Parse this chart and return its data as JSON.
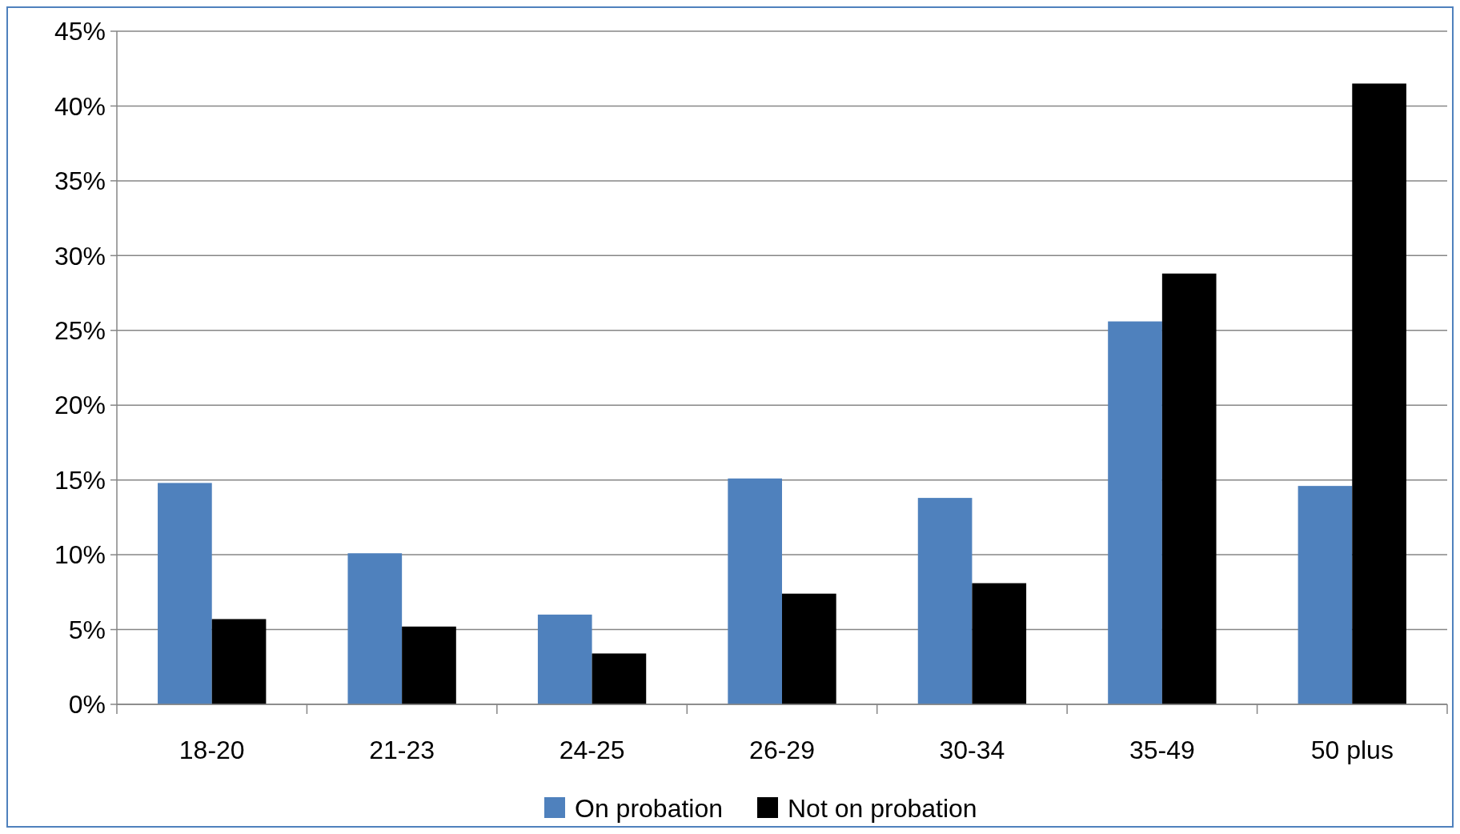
{
  "chart_data": {
    "type": "bar",
    "categories": [
      "18-20",
      "21-23",
      "24-25",
      "26-29",
      "30-34",
      "35-49",
      "50 plus"
    ],
    "series": [
      {
        "name": "On probation",
        "color": "#4f81bd",
        "values": [
          14.8,
          10.1,
          6.0,
          15.1,
          13.8,
          25.6,
          14.6
        ]
      },
      {
        "name": "Not on probation",
        "color": "#000000",
        "values": [
          5.7,
          5.2,
          3.4,
          7.4,
          8.1,
          28.8,
          41.5
        ]
      }
    ],
    "ylim": [
      0,
      45
    ],
    "yticks": [
      {
        "value": 0,
        "label": "0%"
      },
      {
        "value": 5,
        "label": "5%"
      },
      {
        "value": 10,
        "label": "10%"
      },
      {
        "value": 15,
        "label": "15%"
      },
      {
        "value": 20,
        "label": "20%"
      },
      {
        "value": 25,
        "label": "25%"
      },
      {
        "value": 30,
        "label": "30%"
      },
      {
        "value": 35,
        "label": "35%"
      },
      {
        "value": 40,
        "label": "40%"
      },
      {
        "value": 45,
        "label": "45%"
      }
    ],
    "grid": "y",
    "legend": "bottom"
  }
}
